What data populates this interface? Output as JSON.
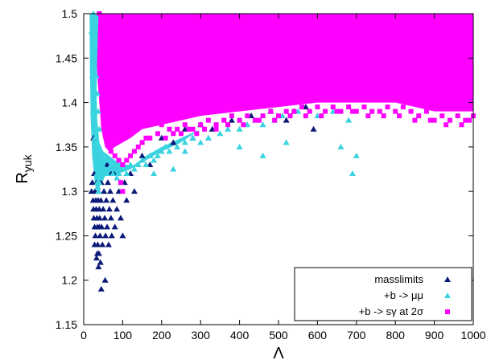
{
  "chart_data": {
    "type": "scatter",
    "title": "",
    "xlabel": "Λ",
    "ylabel": "R",
    "ylabel_sub": "yuk",
    "xlim": [
      0,
      1000
    ],
    "ylim": [
      1.15,
      1.5
    ],
    "x_ticks": [
      0,
      100,
      200,
      300,
      400,
      500,
      600,
      700,
      800,
      900,
      1000
    ],
    "y_ticks": [
      1.15,
      1.2,
      1.25,
      1.3,
      1.35,
      1.4,
      1.45,
      1.5
    ],
    "grid": false,
    "legend_position": "bottom-right",
    "series": [
      {
        "name": "masslimits",
        "marker": "triangle",
        "color": "#0b1a78",
        "points": [
          [
            20,
            1.3
          ],
          [
            22,
            1.31
          ],
          [
            24,
            1.29
          ],
          [
            25,
            1.28
          ],
          [
            26,
            1.27
          ],
          [
            27,
            1.32
          ],
          [
            28,
            1.26
          ],
          [
            29,
            1.3
          ],
          [
            30,
            1.25
          ],
          [
            31,
            1.29
          ],
          [
            32,
            1.28
          ],
          [
            33,
            1.31
          ],
          [
            34,
            1.27
          ],
          [
            35,
            1.26
          ],
          [
            36,
            1.24
          ],
          [
            37,
            1.29
          ],
          [
            38,
            1.3
          ],
          [
            39,
            1.23
          ],
          [
            40,
            1.28
          ],
          [
            41,
            1.27
          ],
          [
            42,
            1.25
          ],
          [
            43,
            1.22
          ],
          [
            44,
            1.29
          ],
          [
            45,
            1.31
          ],
          [
            46,
            1.26
          ],
          [
            48,
            1.24
          ],
          [
            50,
            1.28
          ],
          [
            52,
            1.3
          ],
          [
            54,
            1.27
          ],
          [
            56,
            1.25
          ],
          [
            58,
            1.29
          ],
          [
            60,
            1.26
          ],
          [
            62,
            1.31
          ],
          [
            64,
            1.24
          ],
          [
            66,
            1.28
          ],
          [
            68,
            1.3
          ],
          [
            70,
            1.27
          ],
          [
            72,
            1.25
          ],
          [
            75,
            1.29
          ],
          [
            78,
            1.32
          ],
          [
            80,
            1.26
          ],
          [
            85,
            1.28
          ],
          [
            90,
            1.3
          ],
          [
            95,
            1.27
          ],
          [
            100,
            1.25
          ],
          [
            105,
            1.31
          ],
          [
            110,
            1.29
          ],
          [
            120,
            1.32
          ],
          [
            130,
            1.3
          ],
          [
            35,
            1.23
          ],
          [
            33,
            1.225
          ],
          [
            38,
            1.215
          ],
          [
            55,
            1.2
          ],
          [
            45,
            1.19
          ],
          [
            28,
            1.24
          ],
          [
            40,
            1.26
          ],
          [
            60,
            1.33
          ],
          [
            70,
            1.32
          ],
          [
            150,
            1.34
          ],
          [
            170,
            1.33
          ],
          [
            200,
            1.36
          ],
          [
            230,
            1.355
          ],
          [
            260,
            1.37
          ],
          [
            280,
            1.36
          ],
          [
            300,
            1.375
          ],
          [
            330,
            1.37
          ],
          [
            380,
            1.38
          ],
          [
            430,
            1.385
          ],
          [
            480,
            1.39
          ],
          [
            520,
            1.38
          ],
          [
            540,
            1.39
          ],
          [
            570,
            1.395
          ],
          [
            590,
            1.37
          ],
          [
            25,
            1.36
          ],
          [
            30,
            1.34
          ]
        ]
      },
      {
        "name": "+b -> μμ",
        "marker": "triangle",
        "color": "#3ad3e0",
        "points": [
          [
            20,
            1.48
          ],
          [
            22,
            1.46
          ],
          [
            24,
            1.44
          ],
          [
            25,
            1.42
          ],
          [
            26,
            1.4
          ],
          [
            27,
            1.38
          ],
          [
            28,
            1.36
          ],
          [
            29,
            1.345
          ],
          [
            30,
            1.34
          ],
          [
            31,
            1.335
          ],
          [
            32,
            1.33
          ],
          [
            33,
            1.325
          ],
          [
            34,
            1.32
          ],
          [
            35,
            1.31
          ],
          [
            36,
            1.305
          ],
          [
            38,
            1.3
          ],
          [
            40,
            1.31
          ],
          [
            42,
            1.32
          ],
          [
            44,
            1.315
          ],
          [
            46,
            1.325
          ],
          [
            48,
            1.33
          ],
          [
            50,
            1.34
          ],
          [
            55,
            1.335
          ],
          [
            60,
            1.32
          ],
          [
            65,
            1.325
          ],
          [
            70,
            1.33
          ],
          [
            75,
            1.32
          ],
          [
            80,
            1.325
          ],
          [
            85,
            1.315
          ],
          [
            90,
            1.32
          ],
          [
            95,
            1.31
          ],
          [
            100,
            1.325
          ],
          [
            110,
            1.32
          ],
          [
            120,
            1.33
          ],
          [
            130,
            1.325
          ],
          [
            140,
            1.33
          ],
          [
            150,
            1.335
          ],
          [
            160,
            1.33
          ],
          [
            170,
            1.34
          ],
          [
            180,
            1.335
          ],
          [
            190,
            1.34
          ],
          [
            200,
            1.345
          ],
          [
            210,
            1.35
          ],
          [
            220,
            1.345
          ],
          [
            240,
            1.35
          ],
          [
            260,
            1.355
          ],
          [
            280,
            1.36
          ],
          [
            300,
            1.355
          ],
          [
            320,
            1.36
          ],
          [
            350,
            1.365
          ],
          [
            370,
            1.37
          ],
          [
            400,
            1.37
          ],
          [
            420,
            1.375
          ],
          [
            440,
            1.38
          ],
          [
            460,
            1.375
          ],
          [
            490,
            1.38
          ],
          [
            510,
            1.385
          ],
          [
            550,
            1.39
          ],
          [
            600,
            1.385
          ],
          [
            640,
            1.39
          ],
          [
            680,
            1.38
          ],
          [
            690,
            1.32
          ],
          [
            700,
            1.34
          ],
          [
            660,
            1.35
          ],
          [
            520,
            1.355
          ],
          [
            460,
            1.34
          ],
          [
            400,
            1.35
          ],
          [
            320,
            1.36
          ],
          [
            260,
            1.345
          ],
          [
            230,
            1.325
          ],
          [
            180,
            1.32
          ],
          [
            25,
            1.5
          ],
          [
            28,
            1.49
          ],
          [
            23,
            1.47
          ],
          [
            26,
            1.45
          ],
          [
            32,
            1.43
          ],
          [
            35,
            1.41
          ],
          [
            37,
            1.39
          ],
          [
            40,
            1.37
          ],
          [
            22,
            1.43
          ],
          [
            24,
            1.39
          ],
          [
            30,
            1.37
          ]
        ]
      },
      {
        "name": "+b -> sγ at 2σ",
        "marker": "square",
        "color": "#ff00ff",
        "points": [
          [
            40,
            1.5
          ],
          [
            50,
            1.49
          ],
          [
            60,
            1.48
          ],
          [
            70,
            1.47
          ],
          [
            80,
            1.46
          ],
          [
            90,
            1.45
          ],
          [
            100,
            1.44
          ],
          [
            110,
            1.43
          ],
          [
            120,
            1.42
          ],
          [
            130,
            1.41
          ],
          [
            140,
            1.4
          ],
          [
            150,
            1.395
          ],
          [
            160,
            1.39
          ],
          [
            170,
            1.385
          ],
          [
            180,
            1.38
          ],
          [
            200,
            1.375
          ],
          [
            220,
            1.37
          ],
          [
            240,
            1.37
          ],
          [
            260,
            1.375
          ],
          [
            280,
            1.37
          ],
          [
            300,
            1.375
          ],
          [
            320,
            1.38
          ],
          [
            340,
            1.375
          ],
          [
            360,
            1.38
          ],
          [
            380,
            1.385
          ],
          [
            400,
            1.38
          ],
          [
            420,
            1.385
          ],
          [
            440,
            1.38
          ],
          [
            460,
            1.385
          ],
          [
            480,
            1.39
          ],
          [
            500,
            1.385
          ],
          [
            520,
            1.39
          ],
          [
            540,
            1.39
          ],
          [
            560,
            1.395
          ],
          [
            580,
            1.39
          ],
          [
            600,
            1.395
          ],
          [
            620,
            1.39
          ],
          [
            640,
            1.395
          ],
          [
            660,
            1.39
          ],
          [
            680,
            1.395
          ],
          [
            700,
            1.39
          ],
          [
            720,
            1.395
          ],
          [
            740,
            1.39
          ],
          [
            760,
            1.39
          ],
          [
            780,
            1.395
          ],
          [
            800,
            1.39
          ],
          [
            820,
            1.395
          ],
          [
            840,
            1.39
          ],
          [
            860,
            1.385
          ],
          [
            880,
            1.39
          ],
          [
            900,
            1.38
          ],
          [
            920,
            1.385
          ],
          [
            940,
            1.38
          ],
          [
            960,
            1.385
          ],
          [
            980,
            1.38
          ],
          [
            1000,
            1.385
          ],
          [
            60,
            1.36
          ],
          [
            70,
            1.345
          ],
          [
            80,
            1.34
          ],
          [
            90,
            1.335
          ],
          [
            100,
            1.33
          ],
          [
            110,
            1.335
          ],
          [
            120,
            1.34
          ],
          [
            130,
            1.345
          ],
          [
            140,
            1.35
          ],
          [
            150,
            1.355
          ],
          [
            160,
            1.36
          ],
          [
            170,
            1.36
          ],
          [
            190,
            1.365
          ],
          [
            210,
            1.36
          ],
          [
            230,
            1.365
          ],
          [
            250,
            1.365
          ],
          [
            270,
            1.37
          ],
          [
            290,
            1.365
          ],
          [
            310,
            1.37
          ],
          [
            340,
            1.37
          ],
          [
            370,
            1.375
          ],
          [
            410,
            1.375
          ],
          [
            450,
            1.38
          ],
          [
            490,
            1.38
          ],
          [
            530,
            1.385
          ],
          [
            570,
            1.385
          ],
          [
            610,
            1.385
          ],
          [
            650,
            1.39
          ],
          [
            690,
            1.39
          ],
          [
            730,
            1.385
          ],
          [
            770,
            1.385
          ],
          [
            810,
            1.385
          ],
          [
            850,
            1.38
          ],
          [
            890,
            1.38
          ],
          [
            930,
            1.375
          ],
          [
            970,
            1.375
          ],
          [
            990,
            1.38
          ],
          [
            100,
            1.3
          ],
          [
            95,
            1.31
          ]
        ]
      }
    ],
    "filled_regions": [
      {
        "series_index": 2,
        "boundary": [
          [
            30,
            1.5
          ],
          [
            1000,
            1.5
          ],
          [
            1000,
            1.39
          ],
          [
            900,
            1.39
          ],
          [
            800,
            1.4
          ],
          [
            700,
            1.4
          ],
          [
            600,
            1.4
          ],
          [
            500,
            1.395
          ],
          [
            400,
            1.39
          ],
          [
            300,
            1.385
          ],
          [
            250,
            1.38
          ],
          [
            200,
            1.375
          ],
          [
            150,
            1.37
          ],
          [
            120,
            1.36
          ],
          [
            100,
            1.355
          ],
          [
            80,
            1.35
          ],
          [
            65,
            1.345
          ],
          [
            55,
            1.35
          ],
          [
            45,
            1.37
          ],
          [
            40,
            1.4
          ],
          [
            35,
            1.43
          ],
          [
            32,
            1.47
          ],
          [
            30,
            1.5
          ]
        ]
      },
      {
        "series_index": 1,
        "boundary": [
          [
            15,
            1.5
          ],
          [
            38,
            1.5
          ],
          [
            36,
            1.47
          ],
          [
            34,
            1.44
          ],
          [
            33,
            1.41
          ],
          [
            35,
            1.38
          ],
          [
            40,
            1.355
          ],
          [
            50,
            1.345
          ],
          [
            65,
            1.34
          ],
          [
            80,
            1.335
          ],
          [
            100,
            1.33
          ],
          [
            130,
            1.33
          ],
          [
            160,
            1.34
          ],
          [
            200,
            1.35
          ],
          [
            250,
            1.36
          ],
          [
            300,
            1.37
          ],
          [
            250,
            1.355
          ],
          [
            200,
            1.345
          ],
          [
            160,
            1.335
          ],
          [
            120,
            1.325
          ],
          [
            90,
            1.32
          ],
          [
            60,
            1.32
          ],
          [
            45,
            1.31
          ],
          [
            35,
            1.3
          ],
          [
            28,
            1.31
          ],
          [
            22,
            1.34
          ],
          [
            18,
            1.38
          ],
          [
            16,
            1.44
          ],
          [
            15,
            1.5
          ]
        ]
      }
    ],
    "legend": [
      {
        "label": "masslimits",
        "marker": "triangle",
        "color": "#0b1a78"
      },
      {
        "label": "+b -> μμ",
        "marker": "triangle",
        "color": "#3ad3e0"
      },
      {
        "label": "+b -> sγ at 2σ",
        "marker": "square",
        "color": "#ff00ff"
      }
    ]
  }
}
